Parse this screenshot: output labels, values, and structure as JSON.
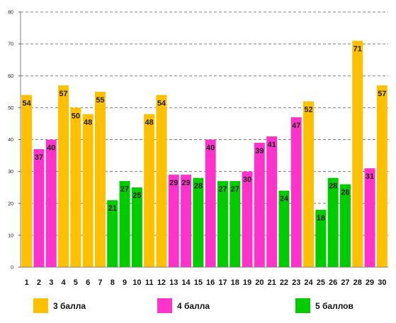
{
  "chart_data": {
    "type": "bar",
    "categories": [
      "1",
      "2",
      "3",
      "4",
      "5",
      "6",
      "7",
      "8",
      "9",
      "10",
      "11",
      "12",
      "13",
      "14",
      "15",
      "16",
      "17",
      "18",
      "19",
      "20",
      "21",
      "22",
      "23",
      "24",
      "25",
      "26",
      "27",
      "28",
      "29",
      "30"
    ],
    "values": [
      54,
      37,
      40,
      57,
      50,
      48,
      55,
      21,
      27,
      25,
      48,
      54,
      29,
      29,
      28,
      40,
      27,
      27,
      30,
      39,
      41,
      24,
      47,
      52,
      18,
      28,
      26,
      71,
      31,
      57
    ],
    "groups": [
      "3 балла",
      "4 балла",
      "4 балла",
      "3 балла",
      "3 балла",
      "3 балла",
      "3 балла",
      "5 баллов",
      "5 баллов",
      "5 баллов",
      "3 балла",
      "3 балла",
      "4 балла",
      "4 балла",
      "5 баллов",
      "4 балла",
      "5 баллов",
      "5 баллов",
      "4 балла",
      "4 балла",
      "4 балла",
      "5 баллов",
      "4 балла",
      "3 балла",
      "5 баллов",
      "5 баллов",
      "5 баллов",
      "3 балла",
      "4 балла",
      "3 балла"
    ],
    "y_ticks": [
      0,
      10,
      20,
      30,
      40,
      50,
      60,
      70,
      80
    ],
    "ylim": [
      0,
      80
    ],
    "grid": true,
    "legend_position": "bottom",
    "legend": [
      {
        "name": "3 балла",
        "color": "#FFC000"
      },
      {
        "name": "4 балла",
        "color": "#FF33CC"
      },
      {
        "name": "5 баллов",
        "color": "#00CC00"
      }
    ],
    "title": "",
    "xlabel": "",
    "ylabel": ""
  }
}
